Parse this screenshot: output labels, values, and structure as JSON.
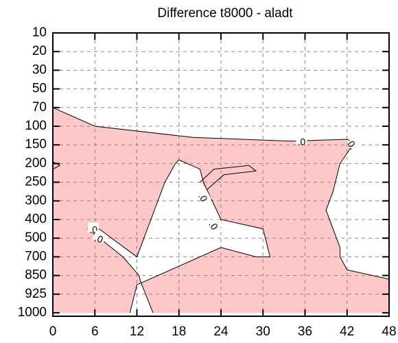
{
  "chart_data": {
    "type": "contour",
    "title": "Difference t8000 - aladt",
    "xlabel": "",
    "ylabel": "",
    "x_ticks": [
      0,
      6,
      12,
      18,
      24,
      30,
      36,
      42,
      48
    ],
    "xlim": [
      0,
      48
    ],
    "y_ticks": [
      10,
      20,
      30,
      50,
      70,
      100,
      150,
      200,
      250,
      300,
      400,
      500,
      700,
      850,
      925,
      1000
    ],
    "y_axis": "pressure levels (categorical, top to bottom)",
    "grid": true,
    "fill_color": "#ffc8c8",
    "contour_level": ".0",
    "contour_labels": [
      ".0",
      "0.",
      ".0",
      ".0",
      ".0",
      ".0"
    ]
  }
}
